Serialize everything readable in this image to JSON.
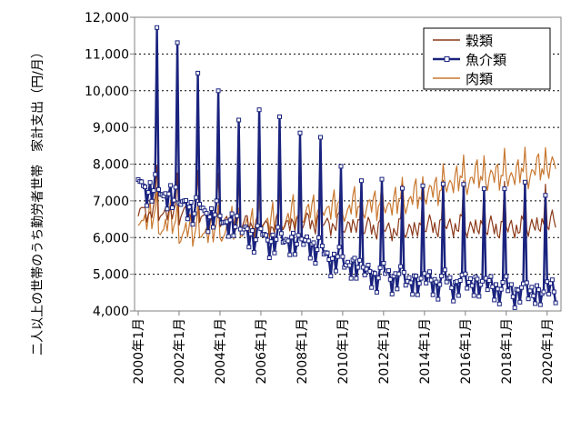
{
  "chart_data": {
    "type": "line",
    "ylabel": "二人以上の世帯のうち勤労者世帯　家計支出（円/月）",
    "ylim": [
      4000,
      12000
    ],
    "y_ticks": [
      "4,000",
      "5,000",
      "6,000",
      "7,000",
      "8,000",
      "9,000",
      "10,000",
      "11,000",
      "12,000"
    ],
    "x_ticks": [
      "2000年1月",
      "2002年1月",
      "2004年1月",
      "2006年1月",
      "2008年1月",
      "2010年1月",
      "2012年1月",
      "2014年1月",
      "2016年1月",
      "2018年1月",
      "2020年1月"
    ],
    "grid": "horizontal dotted",
    "legend_position": "top-right",
    "series": [
      {
        "name": "穀類",
        "color": "#8b3a1a",
        "marker": "none",
        "period": "monthly 2000-01 to 2020-06",
        "annual_mean": [
          6800,
          6750,
          6700,
          6600,
          6550,
          6450,
          6400,
          6450,
          6500,
          6450,
          6400,
          6350,
          6300,
          6300,
          6400,
          6400,
          6350,
          6350,
          6350,
          6400,
          6500
        ],
        "seasonal_offset_by_month": [
          -300,
          -250,
          100,
          0,
          -50,
          -150,
          -100,
          -200,
          -150,
          0,
          100,
          1250
        ]
      },
      {
        "name": "魚介類",
        "color": "#1a237e",
        "marker": "hollow-square",
        "period": "monthly 2000-01 to 2020-06",
        "annual_mean": [
          7400,
          7200,
          6900,
          6700,
          6450,
          6150,
          6000,
          5950,
          5850,
          5500,
          5300,
          5050,
          5000,
          4850,
          4850,
          4800,
          4800,
          4700,
          4600,
          4550,
          4600
        ],
        "december_peak": [
          11800,
          11550,
          10600,
          10100,
          9450,
          9600,
          9400,
          9100,
          8850,
          8050,
          7800,
          7700,
          7450,
          7650,
          7550,
          7550,
          7550,
          7400,
          7600,
          7350
        ],
        "seasonal_offset_by_month": [
          100,
          -100,
          200,
          0,
          -100,
          -300,
          -100,
          0,
          -300,
          -200,
          100,
          0
        ]
      },
      {
        "name": "肉類",
        "color": "#c87830",
        "marker": "none",
        "period": "monthly 2000-01 to 2020-06",
        "annual_mean": [
          6450,
          6300,
          6100,
          6100,
          6150,
          6250,
          6400,
          6500,
          6650,
          6750,
          6750,
          6800,
          6850,
          7000,
          7200,
          7450,
          7550,
          7600,
          7650,
          7750,
          7950
        ],
        "seasonal_offset_by_month": [
          -200,
          -300,
          100,
          0,
          100,
          0,
          200,
          500,
          -100,
          0,
          100,
          900
        ]
      }
    ]
  }
}
